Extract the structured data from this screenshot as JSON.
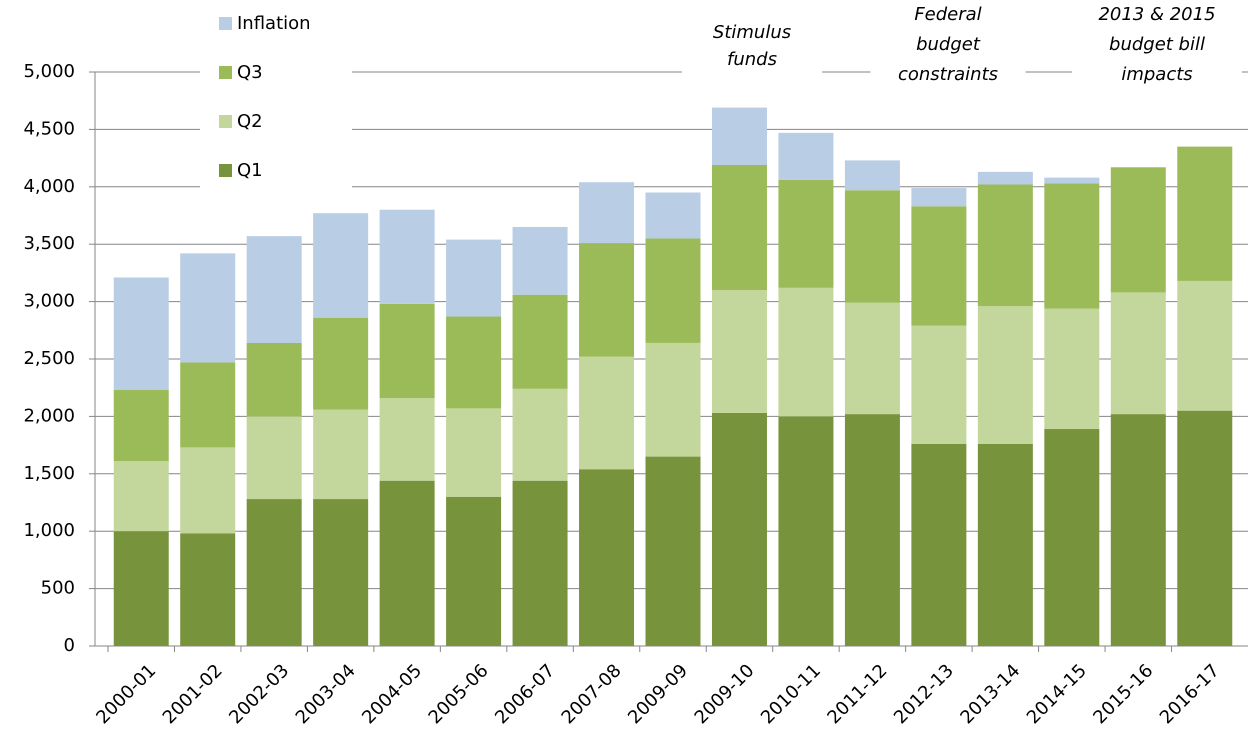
{
  "chart_data": {
    "type": "stacked-bar",
    "categories": [
      "2000-01",
      "2001-02",
      "2002-03",
      "2003-04",
      "2004-05",
      "2005-06",
      "2006-07",
      "2007-08",
      "2009-09",
      "2009-10",
      "2010-11",
      "2011-12",
      "2012-13",
      "2013-14",
      "2014-15",
      "2015-16",
      "2016-17"
    ],
    "series": [
      {
        "name": "Q1",
        "color": "#77933c",
        "values": [
          1000,
          980,
          1280,
          1280,
          1440,
          1300,
          1440,
          1540,
          1650,
          2030,
          2000,
          2020,
          1760,
          1760,
          1890,
          2020,
          2050
        ]
      },
      {
        "name": "Q2",
        "color": "#c3d69b",
        "values": [
          610,
          750,
          720,
          780,
          720,
          770,
          800,
          980,
          990,
          1070,
          1120,
          970,
          1030,
          1200,
          1050,
          1060,
          1130
        ]
      },
      {
        "name": "Q3",
        "color": "#9bbb59",
        "values": [
          620,
          740,
          640,
          800,
          820,
          800,
          820,
          990,
          910,
          1090,
          940,
          980,
          1040,
          1060,
          1090,
          1090,
          1170
        ]
      },
      {
        "name": "Inflation",
        "color": "#b9cde5",
        "values": [
          980,
          950,
          930,
          910,
          820,
          670,
          590,
          530,
          400,
          500,
          410,
          260,
          160,
          110,
          50,
          0,
          0
        ]
      }
    ],
    "ylim": [
      0,
      5000
    ],
    "yticks": [
      0,
      500,
      {
        "value": 1000,
        "label": "1,000"
      },
      {
        "value": 1500,
        "label": "1,500"
      },
      {
        "value": 2000,
        "label": "2,000"
      },
      {
        "value": 2500,
        "label": "2,500"
      },
      {
        "value": 3000,
        "label": "3,000"
      },
      {
        "value": 3500,
        "label": "3,500"
      },
      {
        "value": 4000,
        "label": "4,000"
      },
      {
        "value": 4500,
        "label": "4,500"
      },
      {
        "value": 5000,
        "label": "5,000"
      }
    ],
    "grid": true,
    "legend": "top-left",
    "annotations": [
      {
        "lines": [
          "Stimulus",
          "funds"
        ]
      },
      {
        "lines": [
          "Federal",
          "budget",
          "constraints"
        ]
      },
      {
        "lines": [
          "2013 & 2015",
          "budget bill",
          "impacts"
        ]
      }
    ]
  }
}
